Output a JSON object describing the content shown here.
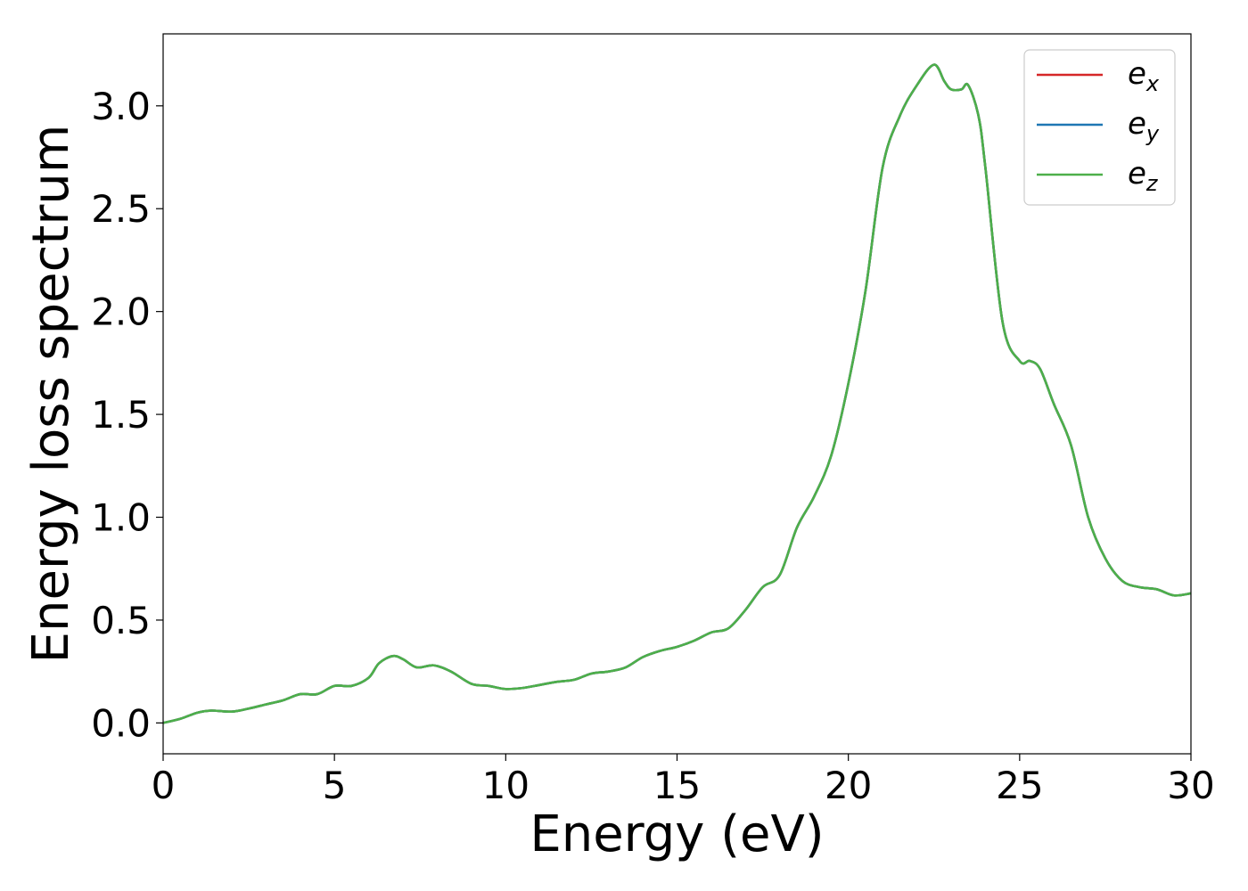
{
  "chart_data": {
    "type": "line",
    "title": "",
    "xlabel": "Energy (eV)",
    "ylabel": "Energy loss spectrum",
    "xlim": [
      0,
      30
    ],
    "ylim": [
      -0.15,
      3.35
    ],
    "xticks": [
      0,
      5,
      10,
      15,
      20,
      25,
      30
    ],
    "xtick_labels": [
      "0",
      "5",
      "10",
      "15",
      "20",
      "25",
      "30"
    ],
    "yticks": [
      0.0,
      0.5,
      1.0,
      1.5,
      2.0,
      2.5,
      3.0
    ],
    "ytick_labels": [
      "0.0",
      "0.5",
      "1.0",
      "1.5",
      "2.0",
      "2.5",
      "3.0"
    ],
    "grid": false,
    "legend_position": "top-right",
    "x": [
      0,
      0.5,
      1.0,
      1.4,
      2.0,
      2.5,
      3.0,
      3.5,
      4.0,
      4.5,
      5.0,
      5.5,
      6.0,
      6.3,
      6.7,
      7.0,
      7.4,
      7.9,
      8.4,
      9.0,
      9.5,
      10.0,
      10.5,
      11.0,
      11.5,
      12.0,
      12.5,
      13.0,
      13.5,
      14.0,
      14.5,
      15.0,
      15.5,
      16.0,
      16.5,
      17.0,
      17.5,
      18.0,
      18.5,
      19.0,
      19.5,
      20.0,
      20.5,
      21.0,
      21.5,
      22.0,
      22.5,
      22.8,
      23.0,
      23.3,
      23.5,
      23.8,
      24.0,
      24.5,
      25.0,
      25.3,
      25.6,
      26.0,
      26.5,
      27.0,
      27.5,
      28.0,
      28.5,
      29.0,
      29.5,
      30.0
    ],
    "series": [
      {
        "name": "e_x",
        "label_base": "e",
        "label_sub": "x",
        "color": "#d62728",
        "values": [
          0.0,
          0.02,
          0.05,
          0.06,
          0.055,
          0.07,
          0.09,
          0.11,
          0.14,
          0.14,
          0.18,
          0.18,
          0.22,
          0.29,
          0.325,
          0.31,
          0.27,
          0.28,
          0.25,
          0.19,
          0.18,
          0.165,
          0.17,
          0.185,
          0.2,
          0.21,
          0.24,
          0.25,
          0.27,
          0.32,
          0.35,
          0.37,
          0.4,
          0.44,
          0.46,
          0.55,
          0.66,
          0.72,
          0.95,
          1.1,
          1.3,
          1.65,
          2.1,
          2.7,
          2.95,
          3.1,
          3.2,
          3.12,
          3.08,
          3.08,
          3.1,
          2.95,
          2.7,
          1.95,
          1.76,
          1.76,
          1.72,
          1.55,
          1.35,
          1.0,
          0.8,
          0.69,
          0.66,
          0.65,
          0.62,
          0.63
        ]
      },
      {
        "name": "e_y",
        "label_base": "e",
        "label_sub": "y",
        "color": "#1f77b4",
        "values": [
          0.0,
          0.02,
          0.05,
          0.06,
          0.055,
          0.07,
          0.09,
          0.11,
          0.14,
          0.14,
          0.18,
          0.18,
          0.22,
          0.29,
          0.325,
          0.31,
          0.27,
          0.28,
          0.25,
          0.19,
          0.18,
          0.165,
          0.17,
          0.185,
          0.2,
          0.21,
          0.24,
          0.25,
          0.27,
          0.32,
          0.35,
          0.37,
          0.4,
          0.44,
          0.46,
          0.55,
          0.66,
          0.72,
          0.95,
          1.1,
          1.3,
          1.65,
          2.1,
          2.7,
          2.95,
          3.1,
          3.2,
          3.12,
          3.08,
          3.08,
          3.1,
          2.95,
          2.7,
          1.95,
          1.76,
          1.76,
          1.72,
          1.55,
          1.35,
          1.0,
          0.8,
          0.69,
          0.66,
          0.65,
          0.62,
          0.63
        ]
      },
      {
        "name": "e_z",
        "label_base": "e",
        "label_sub": "z",
        "color": "#4daf4a",
        "values": [
          0.0,
          0.02,
          0.05,
          0.06,
          0.055,
          0.07,
          0.09,
          0.11,
          0.14,
          0.14,
          0.18,
          0.18,
          0.22,
          0.29,
          0.325,
          0.31,
          0.27,
          0.28,
          0.25,
          0.19,
          0.18,
          0.165,
          0.17,
          0.185,
          0.2,
          0.21,
          0.24,
          0.25,
          0.27,
          0.32,
          0.35,
          0.37,
          0.4,
          0.44,
          0.46,
          0.55,
          0.66,
          0.72,
          0.95,
          1.1,
          1.3,
          1.65,
          2.1,
          2.7,
          2.95,
          3.1,
          3.2,
          3.12,
          3.08,
          3.08,
          3.1,
          2.95,
          2.7,
          1.95,
          1.76,
          1.76,
          1.72,
          1.55,
          1.35,
          1.0,
          0.8,
          0.69,
          0.66,
          0.65,
          0.62,
          0.63
        ]
      }
    ]
  }
}
